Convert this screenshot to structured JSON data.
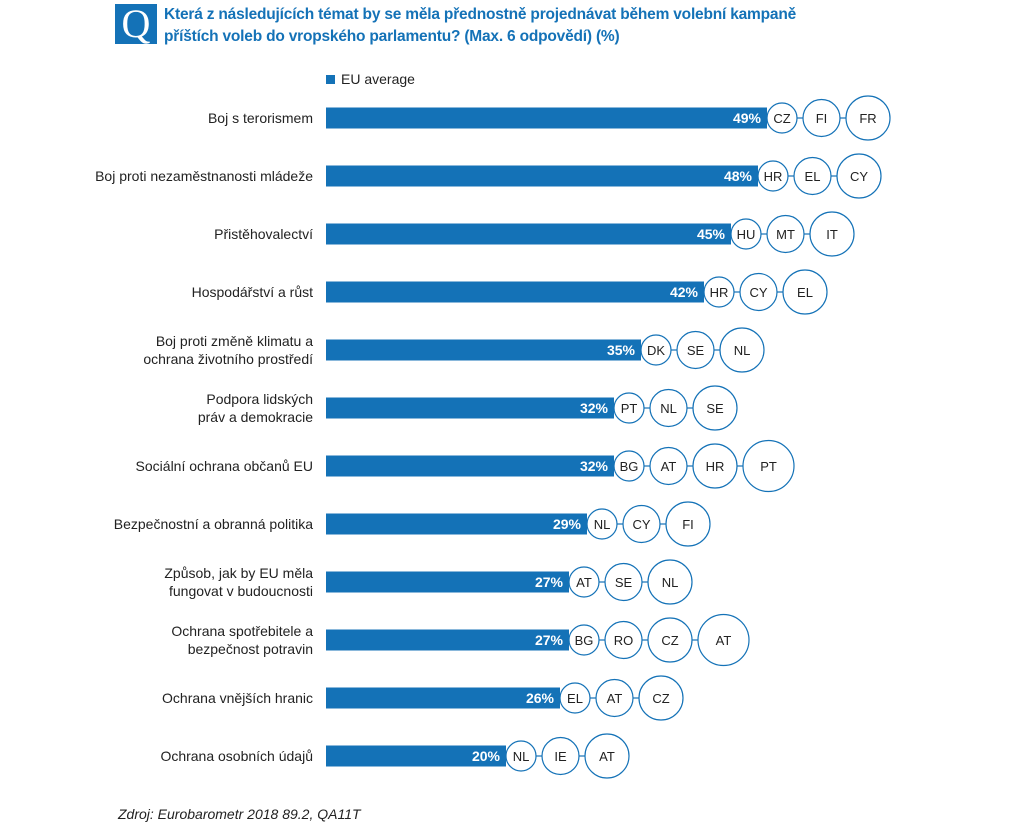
{
  "question": {
    "icon_letter": "Q",
    "title": "Která z následujících témat by se měla přednostně projednávat během volební kampaně příštích voleb do vropského parlamentu?  (Max. 6 odpovědí) (%)"
  },
  "legend": {
    "label": "EU average"
  },
  "source": "Zdroj: Eurobarometr  2018 89.2, QA11T",
  "colors": {
    "bar": "#1472b7",
    "circle_border": "#1472b7",
    "text": "#222222"
  },
  "chart_data": {
    "type": "bar",
    "orientation": "horizontal",
    "title": "Která z následujících témat by se měla přednostně projednávat během volební kampaně příštích voleb do vropského parlamentu?  (Max. 6 odpovědí) (%)",
    "series_name": "EU average",
    "unit": "%",
    "xlim": [
      0,
      100
    ],
    "categories": [
      [
        "Boj s terorismem"
      ],
      [
        "Boj proti nezaměstnanosti mládeže"
      ],
      [
        "Přistěhovalectví"
      ],
      [
        "Hospodářství a růst"
      ],
      [
        "Boj proti změně klimatu a",
        "ochrana životního prostředí"
      ],
      [
        "Podpora lidských",
        "práv a demokracie"
      ],
      [
        "Sociální ochrana občanů EU"
      ],
      [
        "Bezpečnostní a obranná politika"
      ],
      [
        "Způsob, jak by EU měla",
        "fungovat v budoucnosti"
      ],
      [
        "Ochrana spotřebitele a",
        "bezpečnost potravin"
      ],
      [
        "Ochrana vnějších hranic"
      ],
      [
        "Ochrana osobních údajů"
      ]
    ],
    "values": [
      49,
      48,
      45,
      42,
      35,
      32,
      32,
      29,
      27,
      27,
      26,
      20
    ],
    "top_countries": [
      [
        "CZ",
        "FI",
        "FR"
      ],
      [
        "HR",
        "EL",
        "CY"
      ],
      [
        "HU",
        "MT",
        "IT"
      ],
      [
        "HR",
        "CY",
        "EL"
      ],
      [
        "DK",
        "SE",
        "NL"
      ],
      [
        "PT",
        "NL",
        "SE"
      ],
      [
        "BG",
        "AT",
        "HR",
        "PT"
      ],
      [
        "NL",
        "CY",
        "FI"
      ],
      [
        "AT",
        "SE",
        "NL"
      ],
      [
        "BG",
        "RO",
        "CZ",
        "AT"
      ],
      [
        "EL",
        "AT",
        "CZ"
      ],
      [
        "NL",
        "IE",
        "AT"
      ]
    ]
  }
}
